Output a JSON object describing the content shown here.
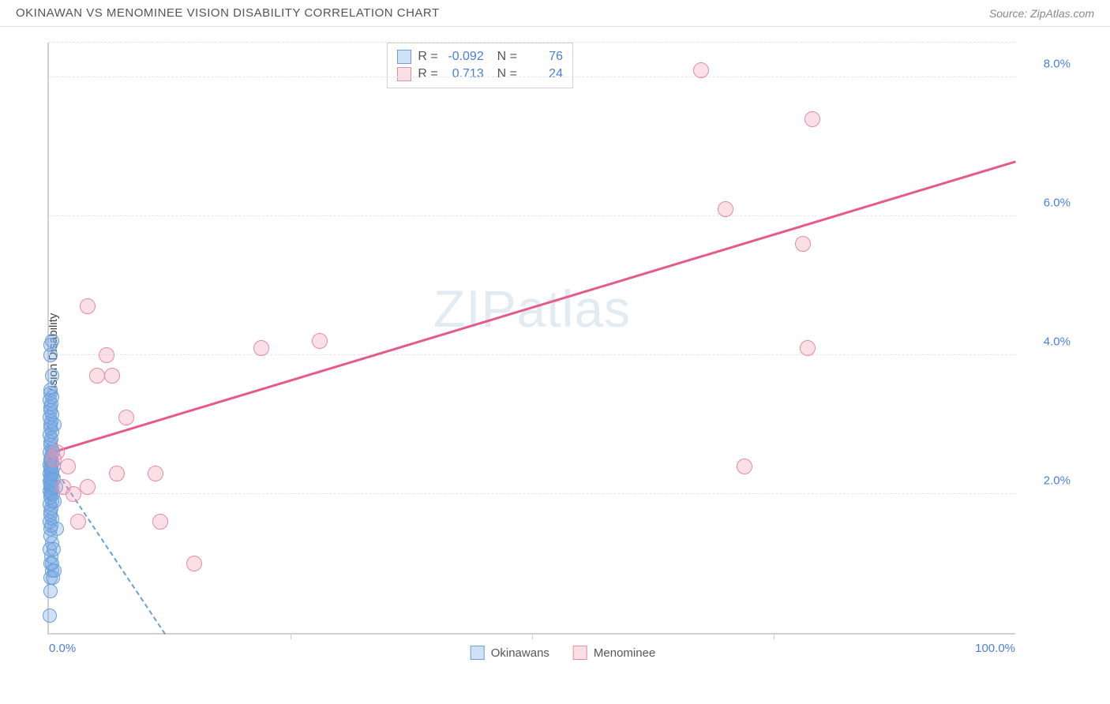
{
  "title": "OKINAWAN VS MENOMINEE VISION DISABILITY CORRELATION CHART",
  "source": "Source: ZipAtlas.com",
  "y_axis_label": "Vision Disability",
  "watermark_a": "ZIP",
  "watermark_b": "atlas",
  "chart": {
    "type": "scatter",
    "xlim": [
      0,
      100
    ],
    "ylim": [
      0,
      8.5
    ],
    "x_tick_labels": {
      "min": "0.0%",
      "max": "100.0%"
    },
    "x_minor_ticks": [
      25,
      50,
      75
    ],
    "y_gridlines": [
      2.0,
      4.0,
      6.0,
      8.0,
      8.5
    ],
    "y_tick_labels": [
      "2.0%",
      "4.0%",
      "6.0%",
      "8.0%"
    ],
    "grid_color": "#e5e5e5",
    "axis_color": "#d0d0d0",
    "label_color": "#4a7fd8",
    "background_color": "#ffffff",
    "series": [
      {
        "name": "Okinawans",
        "fill_color": "rgba(120,170,230,0.35)",
        "stroke_color": "#6a9fd8",
        "marker_radius": 9,
        "r_value": "-0.092",
        "n_value": "76",
        "trend": {
          "x1": 0,
          "y1": 2.5,
          "x2": 12,
          "y2": 0,
          "dashed": true
        },
        "points": [
          [
            0.1,
            0.25
          ],
          [
            0.2,
            0.6
          ],
          [
            0.15,
            0.8
          ],
          [
            0.3,
            0.9
          ],
          [
            0.15,
            1.0
          ],
          [
            0.25,
            1.1
          ],
          [
            0.1,
            1.2
          ],
          [
            0.3,
            1.3
          ],
          [
            0.2,
            1.4
          ],
          [
            0.15,
            1.5
          ],
          [
            0.25,
            1.55
          ],
          [
            0.1,
            1.6
          ],
          [
            0.3,
            1.65
          ],
          [
            0.2,
            1.7
          ],
          [
            0.15,
            1.75
          ],
          [
            0.25,
            1.8
          ],
          [
            0.1,
            1.85
          ],
          [
            0.3,
            1.9
          ],
          [
            0.2,
            1.95
          ],
          [
            0.15,
            2.0
          ],
          [
            0.25,
            2.02
          ],
          [
            0.1,
            2.05
          ],
          [
            0.3,
            2.08
          ],
          [
            0.2,
            2.1
          ],
          [
            0.15,
            2.12
          ],
          [
            0.25,
            2.15
          ],
          [
            0.1,
            2.18
          ],
          [
            0.3,
            2.2
          ],
          [
            0.2,
            2.22
          ],
          [
            0.15,
            2.25
          ],
          [
            0.25,
            2.28
          ],
          [
            0.1,
            2.3
          ],
          [
            0.3,
            2.32
          ],
          [
            0.2,
            2.35
          ],
          [
            0.15,
            2.38
          ],
          [
            0.25,
            2.4
          ],
          [
            0.1,
            2.42
          ],
          [
            0.3,
            2.45
          ],
          [
            0.2,
            2.48
          ],
          [
            0.15,
            2.5
          ],
          [
            0.25,
            2.55
          ],
          [
            0.1,
            2.6
          ],
          [
            0.3,
            2.65
          ],
          [
            0.2,
            2.7
          ],
          [
            0.15,
            2.75
          ],
          [
            0.25,
            2.8
          ],
          [
            0.1,
            2.85
          ],
          [
            0.3,
            2.9
          ],
          [
            0.2,
            2.95
          ],
          [
            0.15,
            3.0
          ],
          [
            0.25,
            3.05
          ],
          [
            0.1,
            3.1
          ],
          [
            0.3,
            3.15
          ],
          [
            0.2,
            3.2
          ],
          [
            0.15,
            3.25
          ],
          [
            0.25,
            3.3
          ],
          [
            0.1,
            3.35
          ],
          [
            0.3,
            3.4
          ],
          [
            0.2,
            3.45
          ],
          [
            0.15,
            3.5
          ],
          [
            0.3,
            3.7
          ],
          [
            0.2,
            4.0
          ],
          [
            0.15,
            4.15
          ],
          [
            0.4,
            2.0
          ],
          [
            0.5,
            2.2
          ],
          [
            0.6,
            1.9
          ],
          [
            0.7,
            2.1
          ],
          [
            0.8,
            1.5
          ],
          [
            0.4,
            2.6
          ],
          [
            0.5,
            2.4
          ],
          [
            0.6,
            3.0
          ],
          [
            0.3,
            1.0
          ],
          [
            0.4,
            0.8
          ],
          [
            0.5,
            1.2
          ],
          [
            0.6,
            0.9
          ],
          [
            0.3,
            4.2
          ]
        ]
      },
      {
        "name": "Menominee",
        "fill_color": "rgba(240,150,175,0.3)",
        "stroke_color": "#e88aa5",
        "marker_radius": 10,
        "r_value": "0.713",
        "n_value": "24",
        "trend": {
          "x1": 0,
          "y1": 2.6,
          "x2": 100,
          "y2": 6.8,
          "dashed": false,
          "color": "#e55a8a",
          "width": 2.5
        },
        "points": [
          [
            0.5,
            2.5
          ],
          [
            0.8,
            2.6
          ],
          [
            1.5,
            2.1
          ],
          [
            2.0,
            2.4
          ],
          [
            2.5,
            2.0
          ],
          [
            3.0,
            1.6
          ],
          [
            4.0,
            2.1
          ],
          [
            5.0,
            3.7
          ],
          [
            6.5,
            3.7
          ],
          [
            7.0,
            2.3
          ],
          [
            8.0,
            3.1
          ],
          [
            11.0,
            2.3
          ],
          [
            11.5,
            1.6
          ],
          [
            15.0,
            1.0
          ],
          [
            22.0,
            4.1
          ],
          [
            28.0,
            4.2
          ],
          [
            4.0,
            4.7
          ],
          [
            6.0,
            4.0
          ],
          [
            67.5,
            8.1
          ],
          [
            70.0,
            6.1
          ],
          [
            72.0,
            2.4
          ],
          [
            78.0,
            5.6
          ],
          [
            79.0,
            7.4
          ],
          [
            78.5,
            4.1
          ]
        ]
      }
    ]
  },
  "legend_bottom": [
    {
      "label": "Okinawans",
      "fill": "rgba(120,170,230,0.35)",
      "stroke": "#6a9fd8"
    },
    {
      "label": "Menominee",
      "fill": "rgba(240,150,175,0.3)",
      "stroke": "#e88aa5"
    }
  ]
}
